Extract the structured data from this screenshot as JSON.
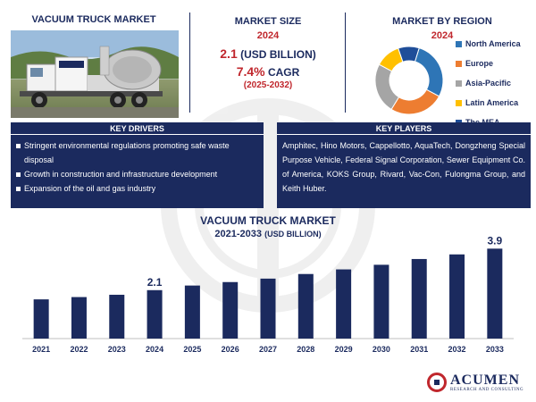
{
  "header": {
    "title": "VACUUM TRUCK MARKET"
  },
  "market_size": {
    "title": "MARKET SIZE",
    "year": "2024",
    "value": "2.1",
    "unit": "(USD BILLION)",
    "cagr": "7.4%",
    "cagr_label": "CAGR",
    "period": "(2025-2032)"
  },
  "region": {
    "title": "MARKET BY REGION",
    "year": "2024",
    "items": [
      {
        "label": "North America",
        "color": "#2e75b6",
        "share": 28
      },
      {
        "label": "Europe",
        "color": "#ed7d31",
        "share": 26
      },
      {
        "label": "Asia-Pacific",
        "color": "#a5a5a5",
        "share": 24
      },
      {
        "label": "Latin America",
        "color": "#ffc000",
        "share": 12
      },
      {
        "label": "The MEA",
        "color": "#1f4e99",
        "share": 10
      }
    ]
  },
  "drivers": {
    "title": "KEY DRIVERS",
    "items": [
      "Stringent environmental regulations promoting safe waste disposal",
      "Growth in construction and infrastructure development",
      "Expansion of the oil and gas industry"
    ]
  },
  "players": {
    "title": "KEY PLAYERS",
    "text": "Amphitec, Hino Motors, Cappellotto, AquaTech, Dongzheng Special Purpose Vehicle, Federal Signal Corporation, Sewer Equipment Co. of America, KOKS Group, Rivard, Vac-Con, Fulongma Group, and Keith Huber."
  },
  "chart_data": {
    "type": "bar",
    "title": "VACUUM TRUCK MARKET",
    "subtitle": "2021-2033",
    "unit": "(USD BILLION)",
    "categories": [
      "2021",
      "2022",
      "2023",
      "2024",
      "2025",
      "2026",
      "2027",
      "2028",
      "2029",
      "2030",
      "2031",
      "2032",
      "2033"
    ],
    "values": [
      1.7,
      1.8,
      1.9,
      2.1,
      2.3,
      2.45,
      2.6,
      2.8,
      3.0,
      3.2,
      3.45,
      3.65,
      3.9
    ],
    "data_labels": {
      "2024": "2.1",
      "2033": "3.9"
    },
    "color": "#1b2a5e",
    "ylim": [
      0,
      4.3
    ]
  },
  "logo": {
    "name": "ACUMEN",
    "sub": "RESEARCH AND CONSULTING"
  }
}
